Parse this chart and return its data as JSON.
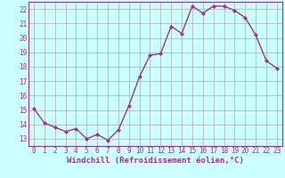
{
  "x": [
    0,
    1,
    2,
    3,
    4,
    5,
    6,
    7,
    8,
    9,
    10,
    11,
    12,
    13,
    14,
    15,
    16,
    17,
    18,
    19,
    20,
    21,
    22,
    23
  ],
  "y": [
    15.1,
    14.1,
    13.8,
    13.5,
    13.7,
    13.0,
    13.3,
    12.9,
    13.6,
    15.3,
    17.3,
    18.8,
    18.9,
    20.8,
    20.3,
    22.2,
    21.7,
    22.2,
    22.2,
    21.9,
    21.4,
    20.2,
    18.4,
    17.9
  ],
  "line_color": "#993399",
  "marker": "D",
  "marker_size": 2.0,
  "bg_color": "#ccffff",
  "grid_color": "#aaaaaa",
  "xlabel": "Windchill (Refroidissement éolien,°C)",
  "xlim": [
    -0.5,
    23.5
  ],
  "ylim": [
    12.5,
    22.5
  ],
  "yticks": [
    13,
    14,
    15,
    16,
    17,
    18,
    19,
    20,
    21,
    22
  ],
  "xticks": [
    0,
    1,
    2,
    3,
    4,
    5,
    6,
    7,
    8,
    9,
    10,
    11,
    12,
    13,
    14,
    15,
    16,
    17,
    18,
    19,
    20,
    21,
    22,
    23
  ],
  "tick_label_size": 5.5,
  "xlabel_size": 6.5,
  "line_width": 1.0
}
